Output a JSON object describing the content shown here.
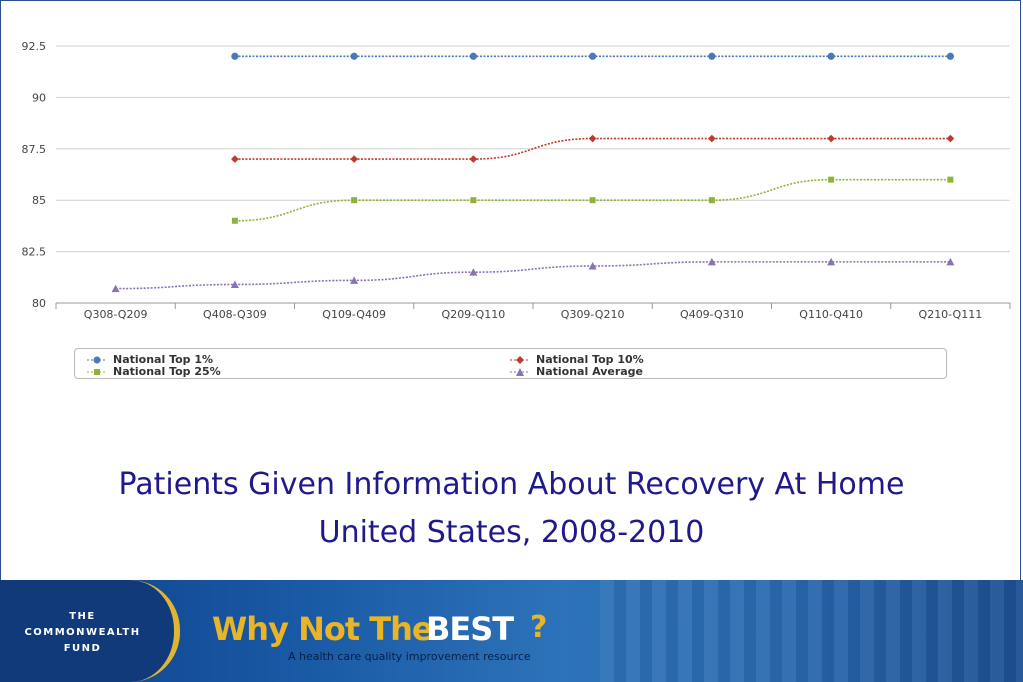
{
  "chart_data": {
    "type": "line",
    "title": "Patients Given Information About Recovery At Home",
    "subtitle": "United States, 2008-2010",
    "categories": [
      "Q308-Q209",
      "Q408-Q309",
      "Q109-Q409",
      "Q209-Q110",
      "Q309-Q210",
      "Q409-Q310",
      "Q110-Q410",
      "Q210-Q111"
    ],
    "ylim": [
      80,
      92.5
    ],
    "yticks": [
      "80",
      "82.5",
      "85",
      "87.5",
      "90",
      "92.5"
    ],
    "grid": true,
    "legend_position": "bottom",
    "series": [
      {
        "name": "National Top 1%",
        "color": "#4a78b8",
        "marker": "circle",
        "values": [
          null,
          92,
          92,
          92,
          92,
          92,
          92,
          92
        ]
      },
      {
        "name": "National Top 10%",
        "color": "#c0392b",
        "marker": "diamond",
        "values": [
          null,
          87,
          87,
          87,
          88,
          88,
          88,
          88
        ]
      },
      {
        "name": "National Top 25%",
        "color": "#8fb33a",
        "marker": "square",
        "values": [
          null,
          84,
          85,
          85,
          85,
          85,
          86,
          86
        ]
      },
      {
        "name": "National Average",
        "color": "#8a72b8",
        "marker": "triangle",
        "values": [
          80.7,
          80.9,
          81.1,
          81.5,
          81.8,
          82,
          82,
          82
        ]
      }
    ]
  },
  "banner": {
    "org_lines": [
      "THE",
      "COMMONWEALTH",
      "FUND"
    ],
    "brand_part1": "Why Not The",
    "brand_part2": "BEST",
    "brand_mark": "?",
    "tagline": "A health care quality improvement resource"
  }
}
